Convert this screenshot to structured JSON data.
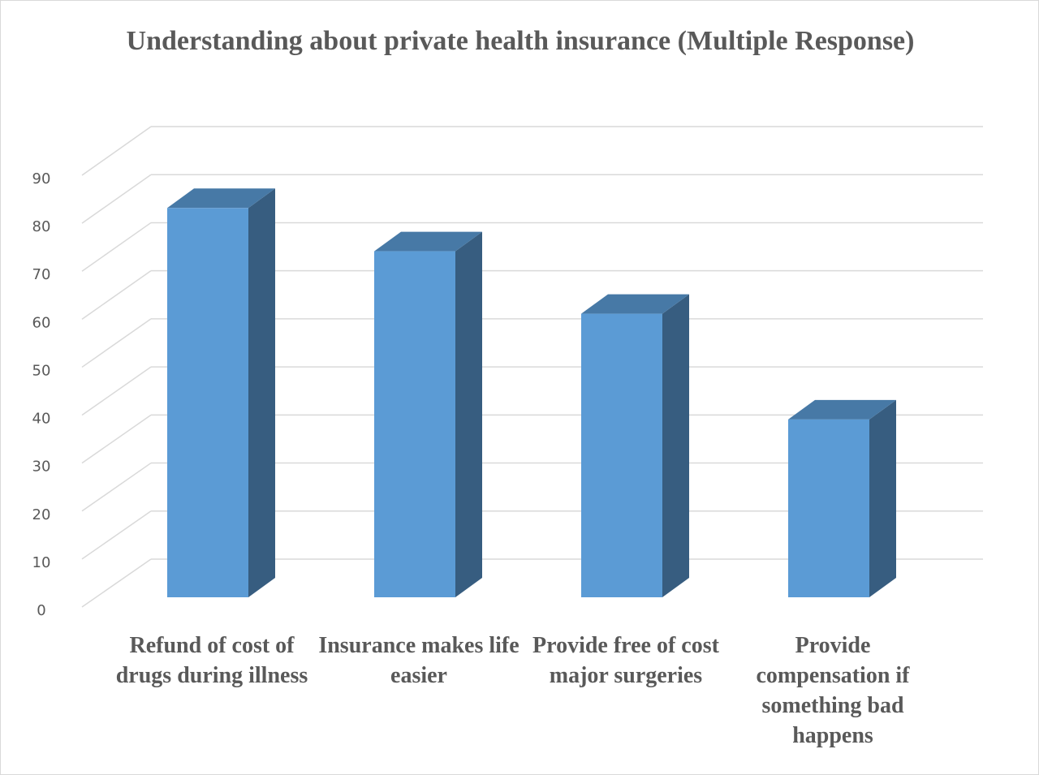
{
  "chart_data": {
    "type": "bar3d",
    "title": "Understanding about private health insurance (Multiple Response)",
    "categories": [
      "Refund of cost of drugs during illness",
      "Insurance makes life easier",
      "Provide free of cost major surgeries",
      "Provide compensation if something bad happens"
    ],
    "values": [
      81,
      72,
      59,
      37
    ],
    "color": "#5b9bd5",
    "ylim": [
      0,
      90
    ],
    "yticks": [
      0,
      10,
      20,
      30,
      40,
      50,
      60,
      70,
      80,
      90
    ],
    "grid": true
  }
}
